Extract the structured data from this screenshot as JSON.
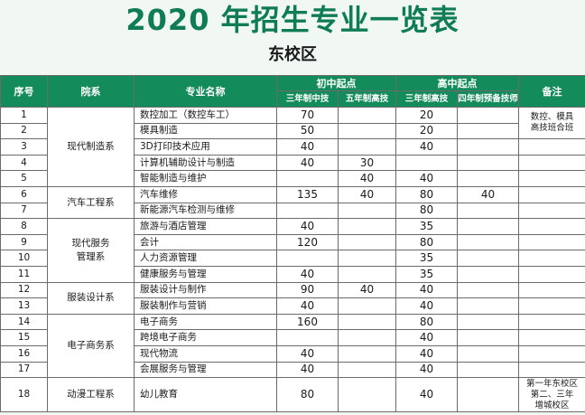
{
  "title": "2020 年招生专业一览表",
  "subtitle": "东校区",
  "header": {
    "seq": "序号",
    "dept": "院系",
    "major": "专业名称",
    "junior_group": "初中起点",
    "senior_group": "高中起点",
    "junior_3yr": "三年制中技",
    "junior_5yr": "五年制高技",
    "senior_3yr": "三年制高技",
    "senior_4yr": "四年制预备技师",
    "note": "备注"
  },
  "departments": {
    "d1": "现代制造系",
    "d2": "汽车工程系",
    "d3_line1": "现代服务",
    "d3_line2": "管理系",
    "d4": "服装设计系",
    "d5": "电子商务系",
    "d6": "动漫工程系"
  },
  "notes": {
    "n1_line1": "数控、模具",
    "n1_line2": "高技班合班",
    "n2_line1": "第一年东校区",
    "n2_line2": "第二、三年",
    "n2_line3": "增城校区"
  },
  "rows": [
    {
      "seq": "1",
      "major": "数控加工（数控车工）",
      "j3": "70",
      "j5": "",
      "s3": "20",
      "s4": ""
    },
    {
      "seq": "2",
      "major": "模具制造",
      "j3": "50",
      "j5": "",
      "s3": "20",
      "s4": ""
    },
    {
      "seq": "3",
      "major": "3D打印技术应用",
      "j3": "40",
      "j5": "",
      "s3": "40",
      "s4": ""
    },
    {
      "seq": "4",
      "major": "计算机辅助设计与制造",
      "j3": "40",
      "j5": "30",
      "s3": "",
      "s4": ""
    },
    {
      "seq": "5",
      "major": "智能制造与维护",
      "j3": "",
      "j5": "40",
      "s3": "40",
      "s4": ""
    },
    {
      "seq": "6",
      "major": "汽车维修",
      "j3": "135",
      "j5": "40",
      "s3": "80",
      "s4": "40"
    },
    {
      "seq": "7",
      "major": "新能源汽车检测与维修",
      "j3": "",
      "j5": "",
      "s3": "80",
      "s4": ""
    },
    {
      "seq": "8",
      "major": "旅游与酒店管理",
      "j3": "40",
      "j5": "",
      "s3": "35",
      "s4": ""
    },
    {
      "seq": "9",
      "major": "会计",
      "j3": "120",
      "j5": "",
      "s3": "80",
      "s4": ""
    },
    {
      "seq": "10",
      "major": "人力资源管理",
      "j3": "",
      "j5": "",
      "s3": "35",
      "s4": ""
    },
    {
      "seq": "11",
      "major": "健康服务与管理",
      "j3": "40",
      "j5": "",
      "s3": "35",
      "s4": ""
    },
    {
      "seq": "12",
      "major": "服装设计与制作",
      "j3": "90",
      "j5": "40",
      "s3": "40",
      "s4": ""
    },
    {
      "seq": "13",
      "major": "服装制作与营销",
      "j3": "40",
      "j5": "",
      "s3": "40",
      "s4": ""
    },
    {
      "seq": "14",
      "major": "电子商务",
      "j3": "160",
      "j5": "",
      "s3": "80",
      "s4": ""
    },
    {
      "seq": "15",
      "major": "跨境电子商务",
      "j3": "",
      "j5": "",
      "s3": "40",
      "s4": ""
    },
    {
      "seq": "16",
      "major": "现代物流",
      "j3": "40",
      "j5": "",
      "s3": "40",
      "s4": ""
    },
    {
      "seq": "17",
      "major": "会展服务与管理",
      "j3": "40",
      "j5": "",
      "s3": "40",
      "s4": ""
    },
    {
      "seq": "18",
      "major": "幼儿教育",
      "j3": "80",
      "j5": "",
      "s3": "40",
      "s4": ""
    }
  ]
}
